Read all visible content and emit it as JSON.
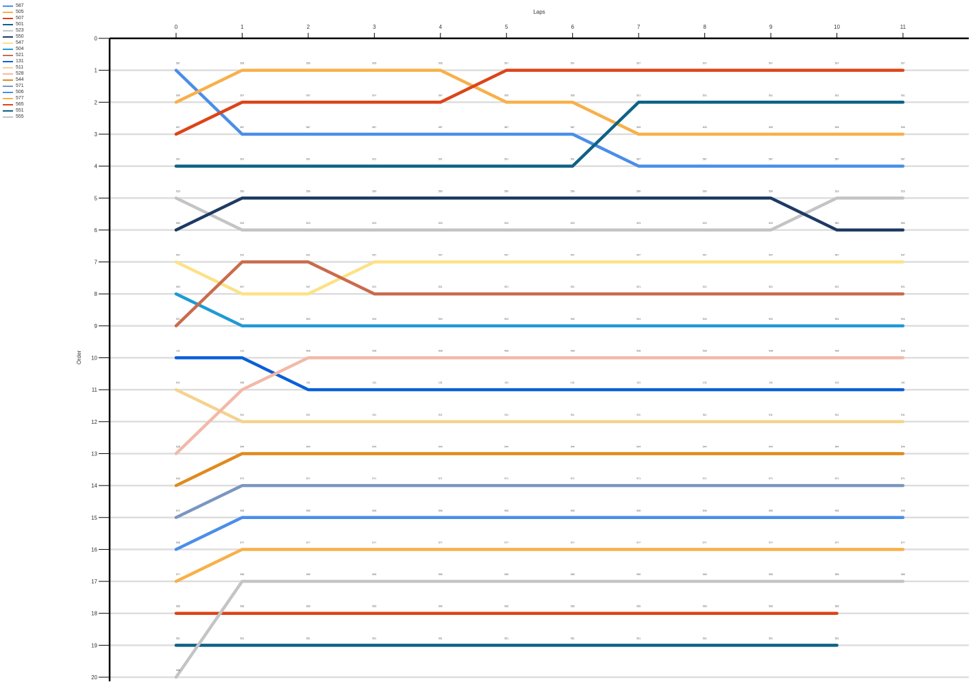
{
  "chart_data": {
    "type": "line",
    "xlabel": "Laps",
    "ylabel": "Order",
    "x": [
      0,
      1,
      2,
      3,
      4,
      5,
      6,
      7,
      8,
      9,
      10,
      11
    ],
    "xlim": [
      0,
      12
    ],
    "ylim": [
      0,
      20
    ],
    "y_inverted": true,
    "y_ticks": [
      0,
      1,
      2,
      3,
      4,
      5,
      6,
      7,
      8,
      9,
      10,
      11,
      12,
      13,
      14,
      15,
      16,
      17,
      18,
      19,
      20
    ],
    "grid": "horizontal",
    "legend_position": "top-left",
    "series": [
      {
        "name": "587",
        "color": "#4a8ee8",
        "values": [
          1,
          3,
          3,
          3,
          3,
          3,
          3,
          4,
          4,
          4,
          4,
          4
        ]
      },
      {
        "name": "505",
        "color": "#f8b04a",
        "values": [
          2,
          1,
          1,
          1,
          1,
          2,
          2,
          3,
          3,
          3,
          3,
          3
        ]
      },
      {
        "name": "507",
        "color": "#dc4418",
        "values": [
          3,
          2,
          2,
          2,
          2,
          1,
          1,
          1,
          1,
          1,
          1,
          1
        ]
      },
      {
        "name": "501",
        "color": "#0d6285",
        "values": [
          4,
          4,
          4,
          4,
          4,
          4,
          4,
          2,
          2,
          2,
          2,
          2
        ]
      },
      {
        "name": "523",
        "color": "#c4c4c4",
        "values": [
          5,
          6,
          6,
          6,
          6,
          6,
          6,
          6,
          6,
          6,
          5,
          5
        ]
      },
      {
        "name": "550",
        "color": "#1e3a63",
        "values": [
          6,
          5,
          5,
          5,
          5,
          5,
          5,
          5,
          5,
          5,
          6,
          6
        ]
      },
      {
        "name": "547",
        "color": "#fce287",
        "values": [
          7,
          8,
          8,
          7,
          7,
          7,
          7,
          7,
          7,
          7,
          7,
          7
        ]
      },
      {
        "name": "504",
        "color": "#1e9ad6",
        "values": [
          8,
          9,
          9,
          9,
          9,
          9,
          9,
          9,
          9,
          9,
          9,
          9
        ]
      },
      {
        "name": "521",
        "color": "#c96b4d",
        "values": [
          9,
          7,
          7,
          8,
          8,
          8,
          8,
          8,
          8,
          8,
          8,
          8
        ]
      },
      {
        "name": "131",
        "color": "#0a5fd8",
        "values": [
          10,
          10,
          11,
          11,
          11,
          11,
          11,
          11,
          11,
          11,
          11,
          11
        ]
      },
      {
        "name": "511",
        "color": "#f5d38e",
        "values": [
          11,
          12,
          12,
          12,
          12,
          12,
          12,
          12,
          12,
          12,
          12,
          12
        ]
      },
      {
        "name": "528",
        "color": "#f2b9a8",
        "values": [
          13,
          11,
          10,
          10,
          10,
          10,
          10,
          10,
          10,
          10,
          10,
          10
        ]
      },
      {
        "name": "544",
        "color": "#e08a1e",
        "values": [
          14,
          13,
          13,
          13,
          13,
          13,
          13,
          13,
          13,
          13,
          13,
          13
        ]
      },
      {
        "name": "571",
        "color": "#7b96bf",
        "values": [
          15,
          14,
          14,
          14,
          14,
          14,
          14,
          14,
          14,
          14,
          14,
          14
        ]
      },
      {
        "name": "506",
        "color": "#4a8ee8",
        "values": [
          16,
          15,
          15,
          15,
          15,
          15,
          15,
          15,
          15,
          15,
          15,
          15
        ]
      },
      {
        "name": "577",
        "color": "#f8b04a",
        "values": [
          17,
          16,
          16,
          16,
          16,
          16,
          16,
          16,
          16,
          16,
          16,
          16
        ]
      },
      {
        "name": "565",
        "color": "#dc4418",
        "values": [
          18,
          18,
          18,
          18,
          18,
          18,
          18,
          18,
          18,
          18,
          18,
          null
        ]
      },
      {
        "name": "551",
        "color": "#0d6285",
        "values": [
          19,
          19,
          19,
          19,
          19,
          19,
          19,
          19,
          19,
          19,
          19,
          null
        ]
      },
      {
        "name": "555",
        "color": "#c4c4c4",
        "values": [
          20,
          17,
          17,
          17,
          17,
          17,
          17,
          17,
          17,
          17,
          17,
          17
        ]
      }
    ]
  }
}
